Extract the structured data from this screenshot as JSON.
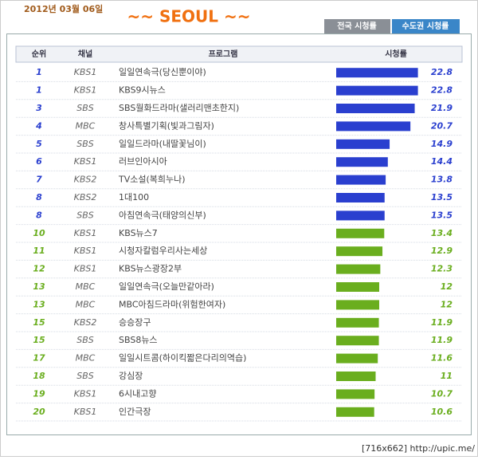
{
  "header": {
    "date": "2012년 03월 06일",
    "title": "~~ SEOUL ~~",
    "tabs": [
      "전국 시청률",
      "수도권 시청률"
    ]
  },
  "table": {
    "columns": [
      "순위",
      "채널",
      "프로그램",
      "시청률"
    ],
    "rows": [
      {
        "rank": 1,
        "channel": "KBS1",
        "program": "일일연속극(당신뿐이야)",
        "rating": 22.8,
        "color": "#2a3fcf"
      },
      {
        "rank": 1,
        "channel": "KBS1",
        "program": "KBS9시뉴스",
        "rating": 22.8,
        "color": "#2a3fcf"
      },
      {
        "rank": 3,
        "channel": "SBS",
        "program": "SBS월화드라마(샐러리맨초한지)",
        "rating": 21.9,
        "color": "#2a3fcf"
      },
      {
        "rank": 4,
        "channel": "MBC",
        "program": "창사특별기획(빛과그림자)",
        "rating": 20.7,
        "color": "#2a3fcf"
      },
      {
        "rank": 5,
        "channel": "SBS",
        "program": "일일드라마(내딸꽃님이)",
        "rating": 14.9,
        "color": "#2a3fcf"
      },
      {
        "rank": 6,
        "channel": "KBS1",
        "program": "러브인아시아",
        "rating": 14.4,
        "color": "#2a3fcf"
      },
      {
        "rank": 7,
        "channel": "KBS2",
        "program": "TV소설(복희누나)",
        "rating": 13.8,
        "color": "#2a3fcf"
      },
      {
        "rank": 8,
        "channel": "KBS2",
        "program": "1대100",
        "rating": 13.5,
        "color": "#2a3fcf"
      },
      {
        "rank": 8,
        "channel": "SBS",
        "program": "아침연속극(태양의신부)",
        "rating": 13.5,
        "color": "#2a3fcf"
      },
      {
        "rank": 10,
        "channel": "KBS1",
        "program": "KBS뉴스7",
        "rating": 13.4,
        "color": "#6aae1e"
      },
      {
        "rank": 11,
        "channel": "KBS1",
        "program": "시청자칼럼우리사는세상",
        "rating": 12.9,
        "color": "#6aae1e"
      },
      {
        "rank": 12,
        "channel": "KBS1",
        "program": "KBS뉴스광장2부",
        "rating": 12.3,
        "color": "#6aae1e"
      },
      {
        "rank": 13,
        "channel": "MBC",
        "program": "일일연속극(오늘만같아라)",
        "rating": 12,
        "color": "#6aae1e"
      },
      {
        "rank": 13,
        "channel": "MBC",
        "program": "MBC아침드라마(위험한여자)",
        "rating": 12,
        "color": "#6aae1e"
      },
      {
        "rank": 15,
        "channel": "KBS2",
        "program": "승승장구",
        "rating": 11.9,
        "color": "#6aae1e"
      },
      {
        "rank": 15,
        "channel": "SBS",
        "program": "SBS8뉴스",
        "rating": 11.9,
        "color": "#6aae1e"
      },
      {
        "rank": 17,
        "channel": "MBC",
        "program": "일일시트콤(하이킥짧은다리의역습)",
        "rating": 11.6,
        "color": "#6aae1e"
      },
      {
        "rank": 18,
        "channel": "SBS",
        "program": "강심장",
        "rating": 11,
        "color": "#6aae1e"
      },
      {
        "rank": 19,
        "channel": "KBS1",
        "program": "6시내고향",
        "rating": 10.7,
        "color": "#6aae1e"
      },
      {
        "rank": 20,
        "channel": "KBS1",
        "program": "인간극장",
        "rating": 10.6,
        "color": "#6aae1e"
      }
    ]
  },
  "footer": {
    "watermark": "[716x662] http://upic.me/"
  }
}
